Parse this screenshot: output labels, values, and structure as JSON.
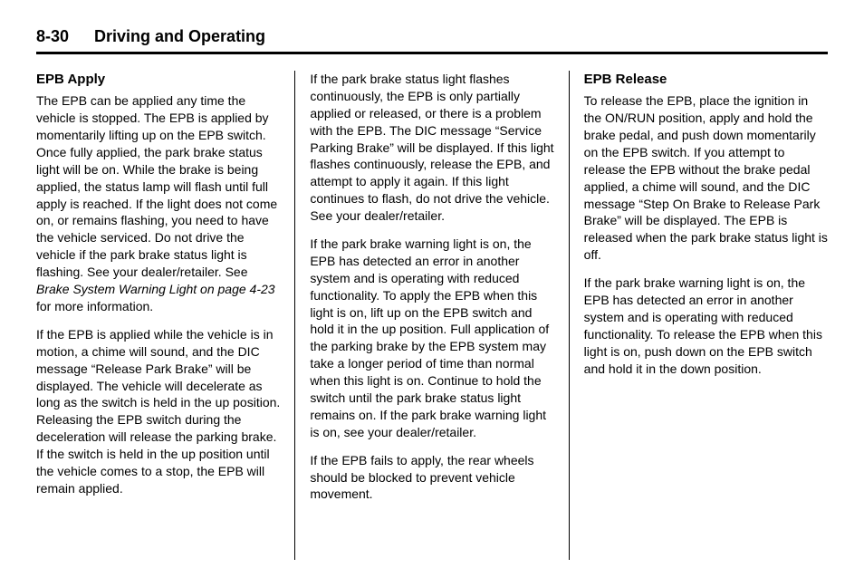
{
  "header": {
    "page_number": "8-30",
    "chapter_title": "Driving and Operating"
  },
  "column1": {
    "heading": "EPB Apply",
    "p1_a": "The EPB can be applied any time the vehicle is stopped. The EPB is applied by momentarily lifting up on the EPB switch. Once fully applied, the park brake status light will be on. While the brake is being applied, the status lamp will flash until full apply is reached. If the light does not come on, or remains flashing, you need to have the vehicle serviced. Do not drive the vehicle if the park brake status light is flashing. See your dealer/retailer. See ",
    "p1_ital": "Brake System Warning Light on page 4-23",
    "p1_b": " for more information.",
    "p2": "If the EPB is applied while the vehicle is in motion, a chime will sound, and the DIC message “Release Park Brake” will be displayed. The vehicle will decelerate as long as the switch is held in the up position. Releasing the EPB switch during the deceleration will release the parking brake. If the switch is held in the up position until the vehicle comes to a stop, the EPB will remain applied."
  },
  "column2": {
    "p1": "If the park brake status light flashes continuously, the EPB is only partially applied or released, or there is a problem with the EPB. The DIC message “Service Parking Brake” will be displayed. If this light flashes continuously, release the EPB, and attempt to apply it again. If this light continues to flash, do not drive the vehicle. See your dealer/retailer.",
    "p2": "If the park brake warning light is on, the EPB has detected an error in another system and is operating with reduced functionality. To apply the EPB when this light is on, lift up on the EPB switch and hold it in the up position. Full application of the parking brake by the EPB system may take a longer period of time than normal when this light is on. Continue to hold the switch until the park brake status light remains on. If the park brake warning light is on, see your dealer/retailer.",
    "p3": "If the EPB fails to apply, the rear wheels should be blocked to prevent vehicle movement."
  },
  "column3": {
    "heading": "EPB Release",
    "p1": "To release the EPB, place the ignition in the ON/RUN position, apply and hold the brake pedal, and push down momentarily on the EPB switch. If you attempt to release the EPB without the brake pedal applied, a chime will sound, and the DIC message “Step On Brake to Release Park Brake” will be displayed. The EPB is released when the park brake status light is off.",
    "p2": "If the park brake warning light is on, the EPB has detected an error in another system and is operating with reduced functionality. To release the EPB when this light is on, push down on the EPB switch and hold it in the down position."
  }
}
